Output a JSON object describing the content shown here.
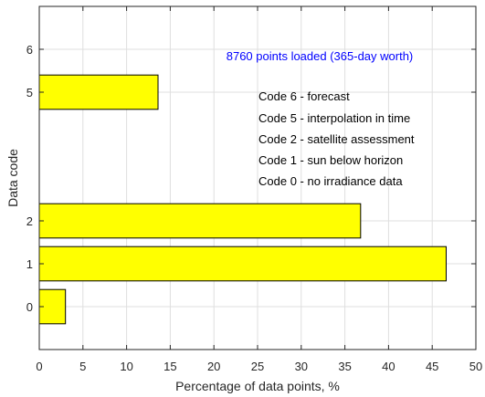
{
  "chart_data": {
    "type": "bar",
    "orientation": "horizontal",
    "title": "",
    "xlabel": "Percentage of data points, %",
    "ylabel": "Data code",
    "xlim": [
      0,
      50
    ],
    "ylim": [
      -1,
      7
    ],
    "x_ticks": [
      0,
      5,
      10,
      15,
      20,
      25,
      30,
      35,
      40,
      45,
      50
    ],
    "y_ticks": [
      0,
      1,
      2,
      5,
      6
    ],
    "grid": true,
    "bar_color": "#ffff00",
    "bar_edge_color": "#000000",
    "bars": [
      {
        "code": 0,
        "value": 3.0
      },
      {
        "code": 1,
        "value": 46.6
      },
      {
        "code": 2,
        "value": 36.8
      },
      {
        "code": 5,
        "value": 13.6
      }
    ],
    "annotations": {
      "points_loaded": {
        "text": "8760 points loaded (365-day worth)",
        "color": "#0000ff"
      },
      "legend_lines": [
        "Code 6 - forecast",
        "Code 5 - interpolation in time",
        "Code 2 - satellite assessment",
        "Code 1 - sun below horizon",
        "Code 0 - no irradiance data"
      ]
    }
  }
}
